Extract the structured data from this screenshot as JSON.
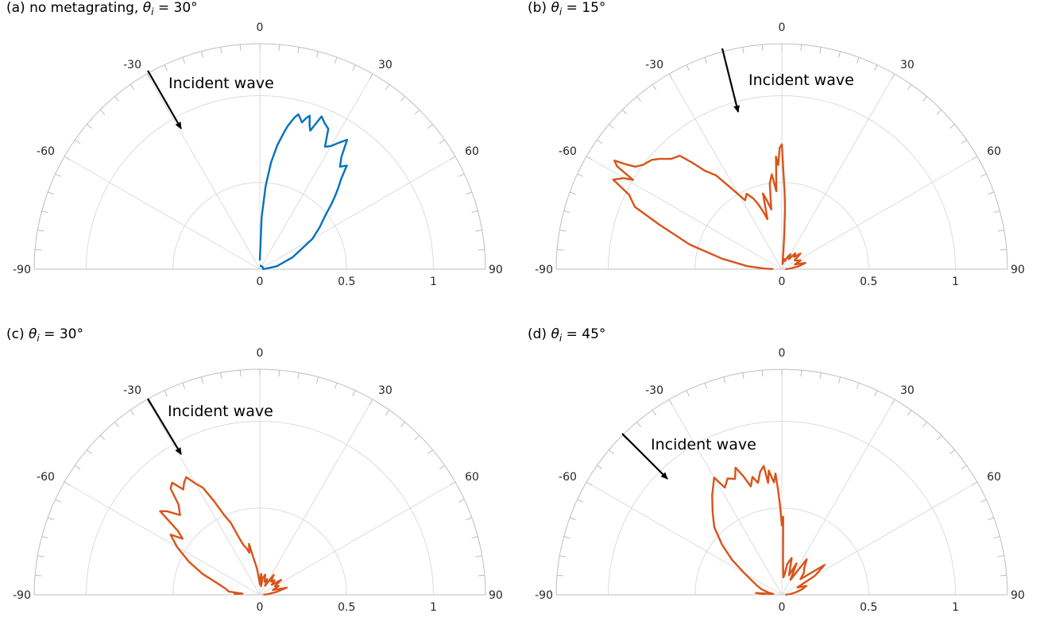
{
  "chart_data": [
    {
      "type": "polar-line",
      "title_prefix": "(a) no metagrating, ",
      "title_var": "θ",
      "title_sub": "i",
      "title_suffix": " = 30°",
      "angle_ticks": [
        "-90",
        "-60",
        "-30",
        "0",
        "30",
        "60",
        "90"
      ],
      "radial_ticks": [
        "0",
        "0.5",
        "1"
      ],
      "rlim": [
        0,
        1.3
      ],
      "theta_range_deg": [
        -90,
        90
      ],
      "grid": true,
      "annotation": "Incident wave",
      "incident_angle_deg": -30,
      "color": "#0072BD",
      "series": [
        {
          "theta": [
            0,
            2,
            4,
            6,
            8,
            10,
            11,
            12,
            13,
            14,
            15,
            16,
            17,
            18,
            19,
            20,
            22,
            24,
            26,
            28,
            30,
            32,
            34,
            36,
            38,
            40,
            42,
            44,
            46,
            48,
            50,
            55,
            60,
            70,
            80,
            90,
            70,
            50,
            45,
            40,
            35,
            30,
            25,
            20,
            15,
            10,
            5,
            0
          ],
          "r": [
            0.05,
            0.3,
            0.48,
            0.62,
            0.72,
            0.8,
            0.84,
            0.87,
            0.9,
            0.92,
            0.9,
            0.88,
            0.91,
            0.93,
            0.88,
            0.85,
            0.95,
            0.92,
            0.9,
            0.8,
            0.82,
            0.86,
            0.9,
            0.8,
            0.75,
            0.78,
            0.7,
            0.65,
            0.6,
            0.55,
            0.5,
            0.42,
            0.35,
            0.2,
            0.1,
            0.02,
            0.02,
            0.02,
            0.02,
            0.02,
            0.02,
            0.02,
            0.02,
            0.02,
            0.02,
            0.02,
            0.02,
            0.02
          ]
        }
      ]
    },
    {
      "type": "polar-line",
      "title_prefix": "(b) ",
      "title_var": "θ",
      "title_sub": "i",
      "title_suffix": " = 15°",
      "angle_ticks": [
        "-90",
        "-60",
        "-30",
        "0",
        "30",
        "60",
        "90"
      ],
      "radial_ticks": [
        "0",
        "0.5",
        "1"
      ],
      "rlim": [
        0,
        1.3
      ],
      "theta_range_deg": [
        -90,
        90
      ],
      "grid": true,
      "annotation": "Incident wave",
      "incident_angle_deg": -15,
      "color": "#D95319",
      "series": [
        {
          "theta": [
            -89,
            -88,
            -85,
            -80,
            -75,
            -70,
            -67,
            -64,
            -62,
            -60,
            -59,
            -58,
            -57,
            -56,
            -55,
            -53,
            -50,
            -48,
            -45,
            -42,
            -40,
            -38,
            -35,
            -32,
            -28,
            -25,
            -22,
            -20,
            -18,
            -16,
            -14,
            -12,
            -10,
            -8,
            -6,
            -4,
            -3,
            -2,
            -1,
            0,
            1,
            2,
            3,
            4,
            5,
            6,
            8,
            10,
            15,
            20,
            25,
            30,
            35,
            40,
            45,
            50,
            55,
            60,
            65,
            70,
            75,
            80,
            85,
            90
          ],
          "r": [
            0.05,
            0.1,
            0.2,
            0.35,
            0.55,
            0.75,
            0.92,
            0.98,
            1.1,
            1.05,
            1.0,
            1.12,
            1.15,
            1.08,
            1.03,
            1.0,
            0.98,
            0.95,
            0.9,
            0.88,
            0.8,
            0.72,
            0.66,
            0.55,
            0.45,
            0.48,
            0.44,
            0.4,
            0.35,
            0.3,
            0.45,
            0.4,
            0.35,
            0.5,
            0.55,
            0.45,
            0.65,
            0.6,
            0.7,
            0.72,
            0.55,
            0.45,
            0.35,
            0.2,
            0.1,
            0.05,
            0.03,
            0.04,
            0.06,
            0.05,
            0.08,
            0.1,
            0.07,
            0.12,
            0.1,
            0.14,
            0.09,
            0.1,
            0.12,
            0.08,
            0.14,
            0.1,
            0.05,
            0.02
          ]
        }
      ]
    },
    {
      "type": "polar-line",
      "title_prefix": "(c) ",
      "title_var": "θ",
      "title_sub": "i",
      "title_suffix": " = 30°",
      "angle_ticks": [
        "-90",
        "-60",
        "-30",
        "0",
        "30",
        "60",
        "90"
      ],
      "radial_ticks": [
        "0",
        "0.5",
        "1"
      ],
      "rlim": [
        0,
        1.3
      ],
      "theta_range_deg": [
        -90,
        90
      ],
      "grid": true,
      "annotation": "Incident wave",
      "incident_angle_deg": -30,
      "color": "#D95319",
      "series": [
        {
          "theta": [
            -88,
            -86,
            -84,
            -80,
            -75,
            -70,
            -65,
            -60,
            -56,
            -54,
            -52,
            -50,
            -48,
            -45,
            -42,
            -40,
            -38,
            -36,
            -34,
            -32,
            -30,
            -28,
            -26,
            -24,
            -22,
            -20,
            -18,
            -16,
            -14,
            -12,
            -10,
            -8,
            -6,
            -4,
            -2,
            0,
            2,
            4,
            6,
            8,
            10,
            15,
            20,
            25,
            30,
            35,
            40,
            45,
            50,
            55,
            60,
            65,
            70,
            75,
            80,
            85,
            90
          ],
          "r": [
            0.15,
            0.1,
            0.18,
            0.2,
            0.25,
            0.35,
            0.45,
            0.55,
            0.62,
            0.55,
            0.6,
            0.75,
            0.72,
            0.65,
            0.7,
            0.8,
            0.82,
            0.75,
            0.78,
            0.8,
            0.74,
            0.7,
            0.6,
            0.5,
            0.45,
            0.35,
            0.3,
            0.28,
            0.25,
            0.3,
            0.22,
            0.18,
            0.15,
            0.1,
            0.08,
            0.06,
            0.1,
            0.12,
            0.08,
            0.05,
            0.1,
            0.12,
            0.08,
            0.1,
            0.06,
            0.14,
            0.1,
            0.12,
            0.09,
            0.15,
            0.1,
            0.12,
            0.08,
            0.16,
            0.1,
            0.05,
            0.02
          ]
        }
      ]
    },
    {
      "type": "polar-line",
      "title_prefix": "(d) ",
      "title_var": "θ",
      "title_sub": "i",
      "title_suffix": " = 45°",
      "angle_ticks": [
        "-90",
        "-60",
        "-30",
        "0",
        "30",
        "60",
        "90"
      ],
      "radial_ticks": [
        "0",
        "0.5",
        "1"
      ],
      "rlim": [
        0,
        1.3
      ],
      "theta_range_deg": [
        -90,
        90
      ],
      "grid": true,
      "annotation": "Incident wave",
      "incident_angle_deg": -45,
      "color": "#D95319",
      "series": [
        {
          "theta": [
            -88,
            -86,
            -84,
            -80,
            -75,
            -70,
            -60,
            -55,
            -50,
            -45,
            -40,
            -35,
            -30,
            -28,
            -25,
            -22,
            -20,
            -18,
            -16,
            -14,
            -12,
            -10,
            -8,
            -7,
            -6,
            -5,
            -4,
            -3,
            -2,
            -1,
            0,
            1,
            2,
            3,
            5,
            8,
            10,
            15,
            20,
            25,
            30,
            35,
            40,
            45,
            50,
            55,
            60,
            65,
            70,
            75,
            80,
            85,
            90
          ],
          "r": [
            0.1,
            0.15,
            0.05,
            0.08,
            0.12,
            0.15,
            0.25,
            0.35,
            0.45,
            0.55,
            0.62,
            0.7,
            0.78,
            0.7,
            0.74,
            0.72,
            0.78,
            0.72,
            0.65,
            0.7,
            0.66,
            0.72,
            0.75,
            0.65,
            0.72,
            0.68,
            0.65,
            0.7,
            0.6,
            0.5,
            0.4,
            0.45,
            0.2,
            0.15,
            0.1,
            0.12,
            0.18,
            0.22,
            0.12,
            0.2,
            0.1,
            0.25,
            0.2,
            0.18,
            0.14,
            0.3,
            0.22,
            0.1,
            0.15,
            0.12,
            0.08,
            0.05,
            0.02
          ]
        }
      ]
    }
  ]
}
